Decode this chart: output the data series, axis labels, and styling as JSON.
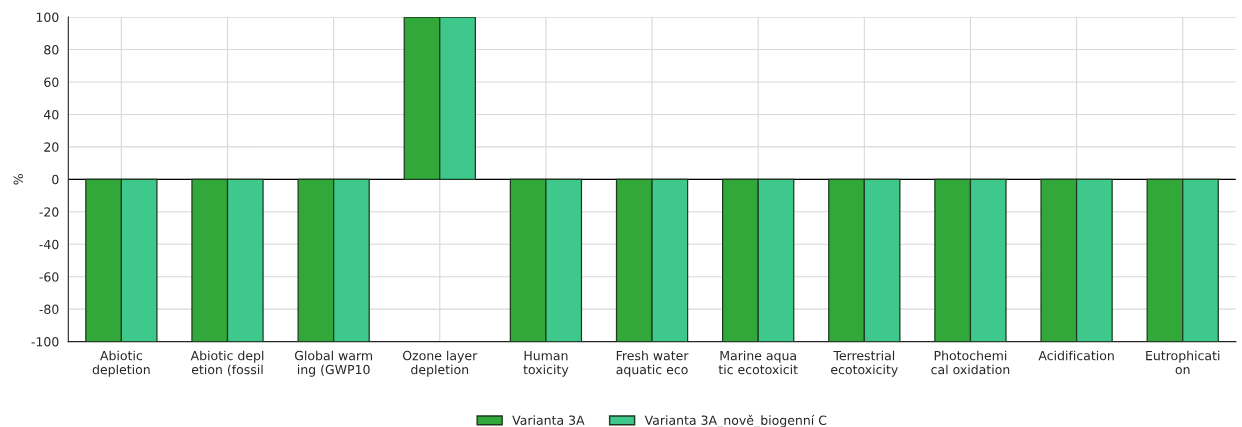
{
  "chart_data": {
    "type": "bar",
    "ylabel": "%",
    "categories": [
      "Abiotic\ndepletion",
      "Abiotic depl\netion (fossil",
      "Global warm\ning (GWP10",
      "Ozone layer\ndepletion",
      "Human\ntoxicity",
      "Fresh water\naquatic eco",
      "Marine aqua\ntic ecotoxicit",
      "Terrestrial\necotoxicity",
      "Photochemi\ncal oxidation",
      "Acidification",
      "Eutrophicati\non"
    ],
    "series": [
      {
        "name": "Varianta 3A",
        "color": "#33a83a",
        "values": [
          -100,
          -100,
          -100,
          100,
          -100,
          -100,
          -100,
          -100,
          -100,
          -100,
          -100
        ]
      },
      {
        "name": "Varianta 3A_nově_biogenní C",
        "color": "#3ec88c",
        "values": [
          -100,
          -100,
          -100,
          100,
          -100,
          -100,
          -100,
          -100,
          -100,
          -100,
          -100
        ]
      }
    ],
    "ylim": [
      -100,
      100
    ],
    "yticks": [
      -100,
      -80,
      -60,
      -40,
      -20,
      0,
      20,
      40,
      60,
      80,
      100
    ],
    "grid": true,
    "legend": "bottom"
  }
}
